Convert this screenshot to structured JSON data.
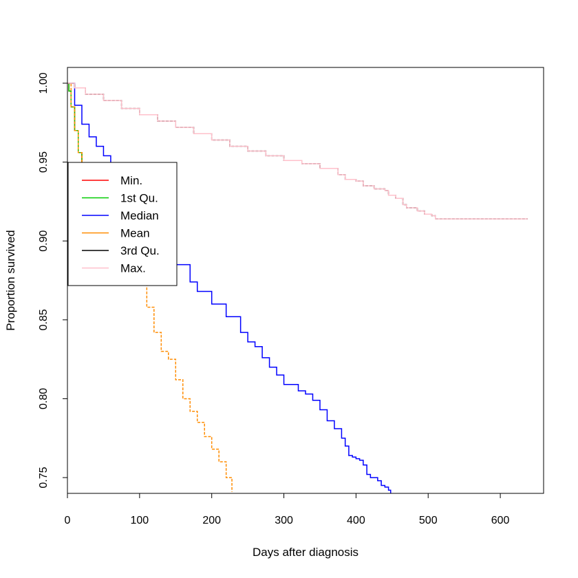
{
  "chart_data": {
    "type": "line",
    "title": "",
    "xlabel": "Days after diagnosis",
    "ylabel": "Proportion survived",
    "xlim": [
      0,
      660
    ],
    "ylim": [
      0.74,
      1.01
    ],
    "x_ticks": [
      0,
      100,
      200,
      300,
      400,
      500,
      600
    ],
    "y_ticks": [
      0.75,
      0.8,
      0.85,
      0.9,
      0.95,
      1.0
    ],
    "x_tick_labels": [
      "0",
      "100",
      "200",
      "300",
      "400",
      "500",
      "600"
    ],
    "y_tick_labels": [
      "0.75",
      "0.80",
      "0.85",
      "0.90",
      "0.95",
      "1.00"
    ],
    "grid": false,
    "legend_position": "left",
    "legend": [
      "Min.",
      "1st Qu.",
      "Median",
      "Mean",
      "3rd Qu.",
      "Max."
    ],
    "series": [
      {
        "name": "Min.",
        "color": "#ff0000",
        "dash": "solid",
        "step": true,
        "points": [
          [
            0,
            1.0
          ],
          [
            2,
            0.995
          ],
          [
            5,
            0.985
          ],
          [
            10,
            0.97
          ],
          [
            15,
            0.956
          ],
          [
            20,
            0.943
          ],
          [
            25,
            0.93
          ],
          [
            30,
            0.918
          ],
          [
            35,
            0.907
          ],
          [
            40,
            0.896
          ],
          [
            45,
            0.885
          ],
          [
            50,
            0.874
          ]
        ]
      },
      {
        "name": "1st Qu.",
        "color": "#00cc00",
        "dash": "solid",
        "step": true,
        "points": [
          [
            0,
            1.0
          ],
          [
            2,
            0.995
          ],
          [
            5,
            0.985
          ],
          [
            10,
            0.97
          ],
          [
            15,
            0.956
          ],
          [
            20,
            0.943
          ],
          [
            25,
            0.93
          ],
          [
            30,
            0.918
          ],
          [
            35,
            0.907
          ],
          [
            40,
            0.896
          ],
          [
            45,
            0.885
          ],
          [
            50,
            0.874
          ]
        ]
      },
      {
        "name": "Median",
        "color": "#0000ff",
        "dash": "solid",
        "step": true,
        "points": [
          [
            0,
            1.0
          ],
          [
            10,
            0.986
          ],
          [
            20,
            0.974
          ],
          [
            30,
            0.966
          ],
          [
            40,
            0.96
          ],
          [
            50,
            0.954
          ],
          [
            60,
            0.948
          ],
          [
            80,
            0.932
          ],
          [
            100,
            0.918
          ],
          [
            110,
            0.91
          ],
          [
            120,
            0.902
          ],
          [
            130,
            0.895
          ],
          [
            150,
            0.885
          ],
          [
            170,
            0.874
          ],
          [
            180,
            0.868
          ],
          [
            200,
            0.86
          ],
          [
            220,
            0.852
          ],
          [
            240,
            0.842
          ],
          [
            250,
            0.836
          ],
          [
            260,
            0.833
          ],
          [
            270,
            0.826
          ],
          [
            280,
            0.82
          ],
          [
            290,
            0.815
          ],
          [
            300,
            0.809
          ],
          [
            320,
            0.805
          ],
          [
            330,
            0.803
          ],
          [
            340,
            0.799
          ],
          [
            350,
            0.793
          ],
          [
            360,
            0.786
          ],
          [
            370,
            0.781
          ],
          [
            380,
            0.775
          ],
          [
            385,
            0.77
          ],
          [
            390,
            0.764
          ],
          [
            395,
            0.763
          ],
          [
            400,
            0.762
          ],
          [
            405,
            0.761
          ],
          [
            410,
            0.758
          ],
          [
            415,
            0.752
          ],
          [
            420,
            0.75
          ],
          [
            425,
            0.75
          ],
          [
            430,
            0.748
          ],
          [
            435,
            0.745
          ],
          [
            440,
            0.744
          ],
          [
            445,
            0.742
          ],
          [
            448,
            0.74
          ]
        ]
      },
      {
        "name": "Mean",
        "color": "#ff8c00",
        "dash": "dashed",
        "step": true,
        "points": [
          [
            0,
            1.0
          ],
          [
            5,
            0.985
          ],
          [
            10,
            0.97
          ],
          [
            15,
            0.956
          ],
          [
            20,
            0.943
          ],
          [
            25,
            0.93
          ],
          [
            30,
            0.918
          ],
          [
            35,
            0.907
          ],
          [
            40,
            0.896
          ],
          [
            50,
            0.874
          ],
          [
            60,
            0.915
          ],
          [
            70,
            0.905
          ],
          [
            80,
            0.895
          ],
          [
            90,
            0.886
          ],
          [
            100,
            0.877
          ],
          [
            110,
            0.858
          ],
          [
            120,
            0.842
          ],
          [
            130,
            0.83
          ],
          [
            140,
            0.825
          ],
          [
            150,
            0.812
          ],
          [
            160,
            0.8
          ],
          [
            170,
            0.792
          ],
          [
            180,
            0.785
          ],
          [
            190,
            0.776
          ],
          [
            200,
            0.768
          ],
          [
            210,
            0.76
          ],
          [
            220,
            0.75
          ],
          [
            228,
            0.741
          ]
        ]
      },
      {
        "name": "3rd Qu.",
        "color": "#000000",
        "dash": "dashed",
        "step": true,
        "points": [
          [
            0,
            1.0
          ],
          [
            10,
            0.997
          ],
          [
            25,
            0.993
          ],
          [
            50,
            0.989
          ],
          [
            75,
            0.984
          ],
          [
            100,
            0.98
          ],
          [
            125,
            0.976
          ],
          [
            150,
            0.972
          ],
          [
            175,
            0.968
          ],
          [
            200,
            0.964
          ],
          [
            225,
            0.96
          ],
          [
            250,
            0.957
          ],
          [
            275,
            0.954
          ],
          [
            300,
            0.951
          ],
          [
            325,
            0.949
          ],
          [
            350,
            0.946
          ],
          [
            375,
            0.942
          ],
          [
            385,
            0.939
          ],
          [
            400,
            0.938
          ],
          [
            410,
            0.935
          ],
          [
            425,
            0.933
          ],
          [
            440,
            0.932
          ],
          [
            445,
            0.929
          ],
          [
            455,
            0.927
          ],
          [
            465,
            0.923
          ],
          [
            470,
            0.921
          ],
          [
            485,
            0.919
          ],
          [
            495,
            0.917
          ],
          [
            505,
            0.916
          ],
          [
            510,
            0.914
          ],
          [
            540,
            0.914
          ],
          [
            580,
            0.914
          ],
          [
            638,
            0.914
          ]
        ]
      },
      {
        "name": "Max.",
        "color": "#ffc0cb",
        "dash": "solid",
        "step": true,
        "points": [
          [
            0,
            1.0
          ],
          [
            10,
            0.997
          ],
          [
            25,
            0.993
          ],
          [
            50,
            0.989
          ],
          [
            75,
            0.984
          ],
          [
            100,
            0.98
          ],
          [
            125,
            0.976
          ],
          [
            150,
            0.972
          ],
          [
            175,
            0.968
          ],
          [
            200,
            0.964
          ],
          [
            225,
            0.96
          ],
          [
            250,
            0.957
          ],
          [
            275,
            0.954
          ],
          [
            300,
            0.951
          ],
          [
            325,
            0.949
          ],
          [
            350,
            0.946
          ],
          [
            375,
            0.942
          ],
          [
            385,
            0.939
          ],
          [
            400,
            0.938
          ],
          [
            410,
            0.935
          ],
          [
            425,
            0.933
          ],
          [
            440,
            0.932
          ],
          [
            445,
            0.929
          ],
          [
            455,
            0.927
          ],
          [
            465,
            0.923
          ],
          [
            470,
            0.921
          ],
          [
            485,
            0.919
          ],
          [
            495,
            0.917
          ],
          [
            505,
            0.916
          ],
          [
            510,
            0.914
          ],
          [
            540,
            0.914
          ],
          [
            580,
            0.914
          ],
          [
            638,
            0.914
          ]
        ]
      }
    ]
  }
}
